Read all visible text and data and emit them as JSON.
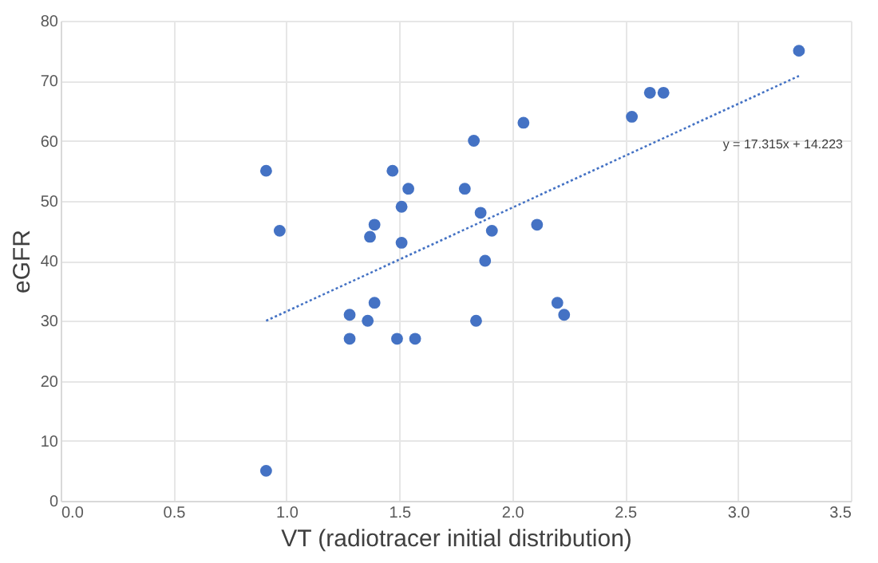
{
  "chart_data": {
    "type": "scatter",
    "xlabel": "VT (radiotracer initial distribution)",
    "ylabel": "eGFR",
    "series": [
      {
        "color": "#4472c4",
        "marker": "circle",
        "x": [
          0.91,
          0.97,
          0.91,
          1.28,
          1.28,
          1.36,
          1.37,
          1.39,
          1.39,
          1.47,
          1.51,
          1.51,
          1.54,
          1.49,
          1.57,
          1.79,
          1.83,
          1.84,
          1.86,
          1.88,
          1.91,
          2.05,
          2.11,
          2.2,
          2.23,
          2.53,
          2.61,
          2.67,
          3.27
        ],
        "values": [
          55,
          45,
          5,
          31,
          27,
          30,
          44,
          46,
          33,
          55,
          49,
          43,
          52,
          27,
          27,
          52,
          60,
          30,
          48,
          40,
          45,
          63,
          46,
          33,
          31,
          64,
          68,
          68,
          75
        ]
      },
      {
        "type": "line",
        "color": "#4472c4",
        "line_style": "dotted",
        "marker": "none",
        "x": [
          0.91,
          3.27
        ],
        "values": [
          30.0,
          70.8
        ]
      }
    ],
    "annotations": [
      "y = 17.315x + 14.223"
    ],
    "xlim": [
      0,
      3.5
    ],
    "xticks": [
      {
        "value": 0,
        "label": "0.0"
      },
      0.5,
      {
        "value": 1,
        "label": "1.0"
      },
      1.5,
      {
        "value": 2,
        "label": "2.0"
      },
      2.5,
      {
        "value": 3,
        "label": "3.0"
      },
      3.5
    ],
    "ylim": [
      0,
      80
    ],
    "yticks": [
      0,
      10,
      20,
      30,
      40,
      50,
      60,
      70,
      80
    ],
    "grid": true
  }
}
